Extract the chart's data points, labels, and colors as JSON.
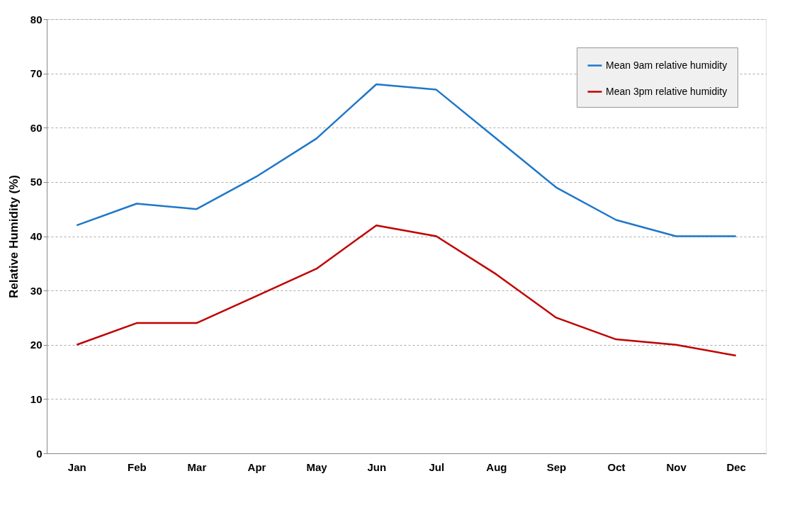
{
  "chart_data": {
    "type": "line",
    "ylabel": "Relative Humidity (%)",
    "categories": [
      "Jan",
      "Feb",
      "Mar",
      "Apr",
      "May",
      "Jun",
      "Jul",
      "Aug",
      "Sep",
      "Oct",
      "Nov",
      "Dec"
    ],
    "series": [
      {
        "name": "Mean 9am relative humidity",
        "color": "#1f77c8",
        "values": [
          42,
          46,
          45,
          51,
          58,
          68,
          67,
          58,
          49,
          43,
          40,
          40
        ]
      },
      {
        "name": "Mean 3pm relative humidity",
        "color": "#c00000",
        "values": [
          20,
          24,
          24,
          29,
          34,
          42,
          40,
          33,
          25,
          21,
          20,
          18
        ]
      }
    ],
    "ylim": [
      0,
      80
    ],
    "yticks": [
      0,
      10,
      20,
      30,
      40,
      50,
      60,
      70,
      80
    ],
    "grid": "y",
    "legend": "top right",
    "marker": "none",
    "line_style": "solid"
  }
}
